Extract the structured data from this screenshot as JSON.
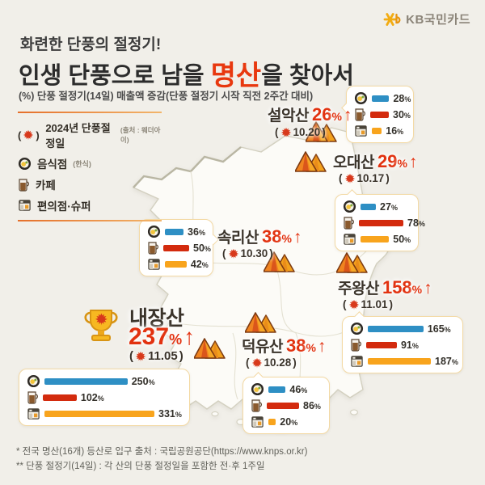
{
  "brand": {
    "name": "KB국민카드"
  },
  "header": {
    "title_line1": "화련한 단풍의 절정기!",
    "title_line2_prefix": "인생 단풍으로 남을 ",
    "title_line2_highlight": "명산",
    "title_line2_suffix": "을 찾아서",
    "subtitle": "(%) 단풍 절정기(14일) 매출액 증감(단풍 절정기 시작 직전 2주간 대비)",
    "accent_color": "#e8380f"
  },
  "legend": {
    "peak_date_label": "2024년 단풍절정일",
    "peak_date_source": "(출처 : 웨더아이)",
    "items": [
      {
        "icon": "restaurant-icon",
        "label": "음식점",
        "sublabel": "(한식)"
      },
      {
        "icon": "cafe-icon",
        "label": "카페",
        "sublabel": ""
      },
      {
        "icon": "store-icon",
        "label": "편의점·슈퍼",
        "sublabel": ""
      }
    ]
  },
  "ui": {
    "open_paren": "(",
    "close_paren": ")",
    "percent": "%",
    "arrow_up": "↑"
  },
  "bar_colors": {
    "restaurant": "#2e8fc4",
    "cafe": "#d32b0e",
    "store": "#f8a41d"
  },
  "mountains": [
    {
      "name": "설악산",
      "pct": 26,
      "date": "10.20",
      "bars": [
        {
          "type": "restaurant",
          "value": 28
        },
        {
          "type": "cafe",
          "value": 30
        },
        {
          "type": "store",
          "value": 16
        }
      ]
    },
    {
      "name": "오대산",
      "pct": 29,
      "date": "10.17",
      "bars": [
        {
          "type": "restaurant",
          "value": 27
        },
        {
          "type": "cafe",
          "value": 78
        },
        {
          "type": "store",
          "value": 50
        }
      ]
    },
    {
      "name": "속리산",
      "pct": 38,
      "date": "10.30",
      "bars": [
        {
          "type": "restaurant",
          "value": 36
        },
        {
          "type": "cafe",
          "value": 50
        },
        {
          "type": "store",
          "value": 42
        }
      ]
    },
    {
      "name": "주왕산",
      "pct": 158,
      "date": "11.01",
      "bars": [
        {
          "type": "restaurant",
          "value": 165
        },
        {
          "type": "cafe",
          "value": 91
        },
        {
          "type": "store",
          "value": 187
        }
      ]
    },
    {
      "name": "내장산",
      "pct": 237,
      "date": "11.05",
      "winner": true,
      "bars": [
        {
          "type": "restaurant",
          "value": 250
        },
        {
          "type": "cafe",
          "value": 102
        },
        {
          "type": "store",
          "value": 331
        }
      ]
    },
    {
      "name": "덕유산",
      "pct": 38,
      "date": "10.28",
      "bars": [
        {
          "type": "restaurant",
          "value": 46
        },
        {
          "type": "cafe",
          "value": 86
        },
        {
          "type": "store",
          "value": 20
        }
      ]
    }
  ],
  "chart_data": [
    {
      "type": "bar",
      "title": "설악산 매출액 증감",
      "subtitle": "단풍절정일 10.20 · 전체 26% 증가",
      "categories": [
        "음식점(한식)",
        "카페",
        "편의점·슈퍼"
      ],
      "values": [
        28,
        30,
        16
      ],
      "unit": "%"
    },
    {
      "type": "bar",
      "title": "오대산 매출액 증감",
      "subtitle": "단풍절정일 10.17 · 전체 29% 증가",
      "categories": [
        "음식점(한식)",
        "카페",
        "편의점·슈퍼"
      ],
      "values": [
        27,
        78,
        50
      ],
      "unit": "%"
    },
    {
      "type": "bar",
      "title": "속리산 매출액 증감",
      "subtitle": "단풍절정일 10.30 · 전체 38% 증가",
      "categories": [
        "음식점(한식)",
        "카페",
        "편의점·슈퍼"
      ],
      "values": [
        36,
        50,
        42
      ],
      "unit": "%"
    },
    {
      "type": "bar",
      "title": "주왕산 매출액 증감",
      "subtitle": "단풍절정일 11.01 · 전체 158% 증가",
      "categories": [
        "음식점(한식)",
        "카페",
        "편의점·슈퍼"
      ],
      "values": [
        165,
        91,
        187
      ],
      "unit": "%"
    },
    {
      "type": "bar",
      "title": "내장산 매출액 증감",
      "subtitle": "단풍절정일 11.05 · 전체 237% 증가 (1위)",
      "categories": [
        "음식점(한식)",
        "카페",
        "편의점·슈퍼"
      ],
      "values": [
        250,
        102,
        331
      ],
      "unit": "%"
    },
    {
      "type": "bar",
      "title": "덕유산 매출액 증감",
      "subtitle": "단풍절정일 10.28 · 전체 38% 증가",
      "categories": [
        "음식점(한식)",
        "카페",
        "편의점·슈퍼"
      ],
      "values": [
        46,
        86,
        20
      ],
      "unit": "%"
    }
  ],
  "footnotes": {
    "line1": "* 전국 명산(16개) 등산로 입구 출처 : 국립공원공단(https://www.knps.or.kr)",
    "line2": "** 단풍 절정기(14일) : 각 산의 단풍 절정일을 포함한 전·후 1주일"
  }
}
